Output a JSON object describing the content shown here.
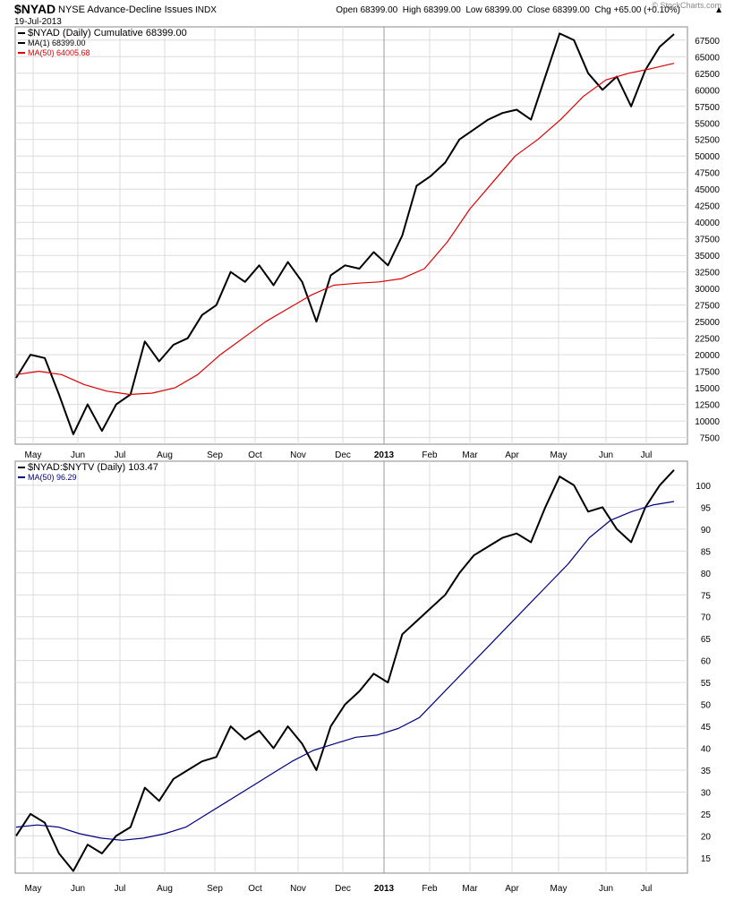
{
  "header": {
    "symbol": "$NYAD",
    "description": "NYSE Advance-Decline Issues",
    "exchange": "INDX",
    "date": "19-Jul-2013",
    "quote": "Open 68399.00  High 68399.00  Low 68399.00  Close 68399.00  Chg +65.00 (+0.10%)",
    "watermark": "© StockCharts.com"
  },
  "chart_data": [
    {
      "type": "line",
      "legend": [
        {
          "label": "$NYAD (Daily) Cumulative 68399.00",
          "color": "#000000"
        },
        {
          "label": "MA(1) 68399.00",
          "color": "#000000"
        },
        {
          "label": "MA(50) 64005.68",
          "color": "#dd0000"
        }
      ],
      "x_ticks": [
        "May",
        "Jun",
        "Jul",
        "Aug",
        "Sep",
        "Oct",
        "Nov",
        "Dec",
        "2013",
        "Feb",
        "Mar",
        "Apr",
        "May",
        "Jun",
        "Jul"
      ],
      "y_ticks": [
        "7500",
        "10000",
        "12500",
        "15000",
        "17500",
        "20000",
        "22500",
        "25000",
        "27500",
        "30000",
        "32500",
        "35000",
        "37500",
        "40000",
        "42500",
        "45000",
        "47500",
        "50000",
        "52500",
        "55000",
        "57500",
        "60000",
        "62500",
        "65000",
        "67500"
      ],
      "ylim": [
        6500,
        69500
      ],
      "series": [
        {
          "color": "#000000",
          "values": [
            16500,
            20000,
            19500,
            14000,
            8000,
            12500,
            8500,
            12500,
            14000,
            22000,
            19000,
            21500,
            22500,
            26000,
            27500,
            32500,
            31000,
            33500,
            30500,
            34000,
            31000,
            25000,
            32000,
            33500,
            33000,
            35500,
            33500,
            38000,
            45500,
            47000,
            49000,
            52500,
            54000,
            55500,
            56500,
            57000,
            55500,
            62000,
            68500,
            67500,
            62500,
            60000,
            62000,
            57500,
            63000,
            66500,
            68400
          ]
        },
        {
          "color": "#dd0000",
          "values": [
            17000,
            17500,
            17000,
            15500,
            14500,
            14000,
            14200,
            15000,
            17000,
            20000,
            22500,
            25000,
            27000,
            29000,
            30500,
            30800,
            31000,
            31500,
            33000,
            37000,
            42000,
            46000,
            50000,
            52500,
            55500,
            59000,
            61500,
            62500,
            63200,
            64000
          ]
        }
      ]
    },
    {
      "type": "line",
      "legend": [
        {
          "label": "$NYAD:$NYTV (Daily) 103.47",
          "color": "#000000"
        },
        {
          "label": "MA(50) 96.29",
          "color": "#000080"
        }
      ],
      "x_ticks": [
        "May",
        "Jun",
        "Jul",
        "Aug",
        "Sep",
        "Oct",
        "Nov",
        "Dec",
        "2013",
        "Feb",
        "Mar",
        "Apr",
        "May",
        "Jun",
        "Jul"
      ],
      "y_ticks": [
        "15",
        "20",
        "25",
        "30",
        "35",
        "40",
        "45",
        "50",
        "55",
        "60",
        "65",
        "70",
        "75",
        "80",
        "85",
        "90",
        "95",
        "100"
      ],
      "ylim": [
        11.5,
        105.5
      ],
      "series": [
        {
          "color": "#000000",
          "values": [
            20,
            25,
            23,
            16,
            12,
            18,
            16,
            20,
            22,
            31,
            28,
            33,
            35,
            37,
            38,
            45,
            42,
            44,
            40,
            45,
            41,
            35,
            45,
            50,
            53,
            57,
            55,
            66,
            69,
            72,
            75,
            80,
            84,
            86,
            88,
            89,
            87,
            95,
            102,
            100,
            94,
            95,
            90,
            87,
            95,
            100,
            103.5
          ]
        },
        {
          "color": "#000080",
          "values": [
            22,
            22.5,
            22,
            20.5,
            19.5,
            19,
            19.5,
            20.5,
            22,
            25,
            28,
            31,
            34,
            37,
            39.5,
            41,
            42.5,
            43,
            44.5,
            47,
            52,
            57,
            62,
            67,
            72,
            77,
            82,
            88,
            92,
            94,
            95.5,
            96.3
          ]
        }
      ]
    }
  ]
}
